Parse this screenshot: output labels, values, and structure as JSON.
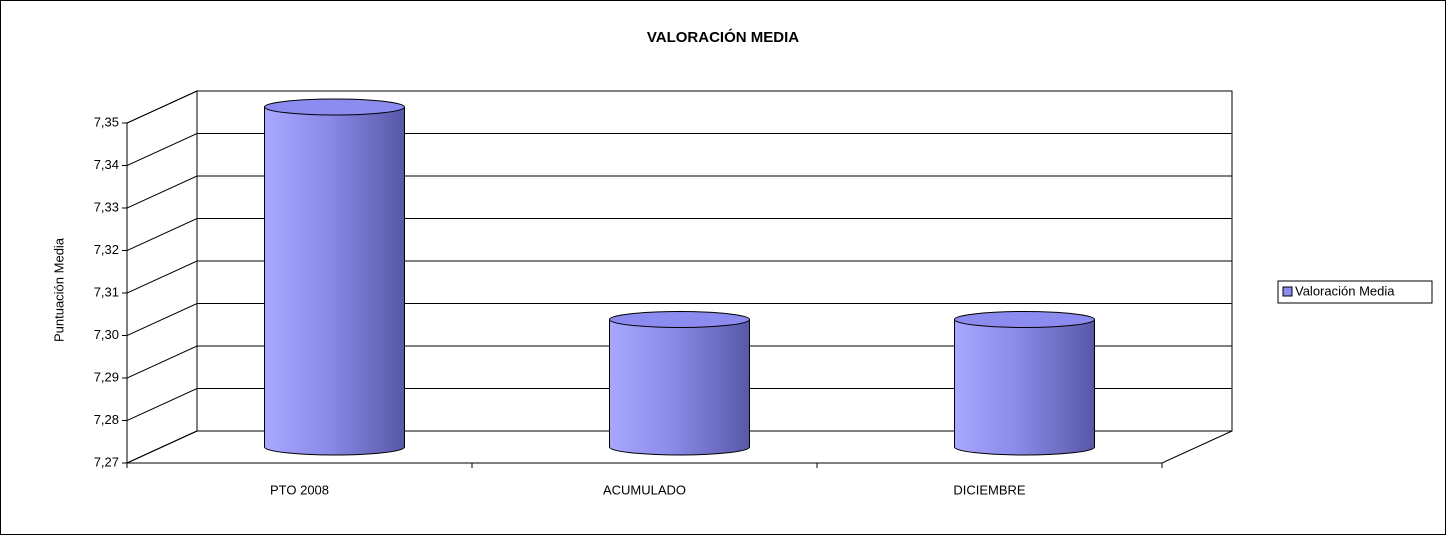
{
  "chart_data": {
    "type": "bar3d-cylinder",
    "title": "VALORACIÓN MEDIA",
    "y_label": "Puntuación Media",
    "categories": [
      "PTO 2008",
      "ACUMULADO",
      "DICIEMBRE"
    ],
    "series": [
      {
        "name": "Valoración Media",
        "color": "#8c8cf0",
        "values": [
          7.35,
          7.3,
          7.3
        ]
      }
    ],
    "ylim": [
      7.27,
      7.35
    ],
    "yticks": [
      {
        "value": 7.27,
        "label": "7,27"
      },
      {
        "value": 7.28,
        "label": "7,28"
      },
      {
        "value": 7.29,
        "label": "7,29"
      },
      {
        "value": 7.3,
        "label": "7,30"
      },
      {
        "value": 7.31,
        "label": "7,31"
      },
      {
        "value": 7.32,
        "label": "7,32"
      },
      {
        "value": 7.33,
        "label": "7,33"
      },
      {
        "value": 7.34,
        "label": "7,34"
      },
      {
        "value": 7.35,
        "label": "7,35"
      }
    ],
    "grid": true,
    "legend": "right"
  }
}
